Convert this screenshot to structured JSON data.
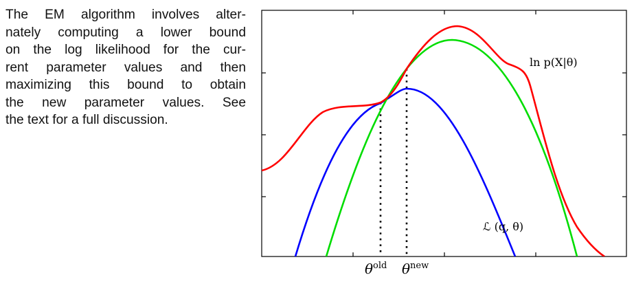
{
  "caption": {
    "lines": [
      "The EM algorithm involves alter-",
      "nately computing a lower bound",
      "on the log likelihood for the cur-",
      "rent parameter values and then",
      "maximizing this bound to obtain",
      "the new parameter values.  See",
      "the text for a full discussion."
    ]
  },
  "diagram": {
    "labels": {
      "log_likelihood": "ln p(X|θ)",
      "lower_bound": "ℒ (q, θ)",
      "theta_old_symbol": "θ",
      "theta_old_superscript": "old",
      "theta_new_symbol": "θ",
      "theta_new_superscript": "new"
    },
    "colors": {
      "log_likelihood": "#ff0000",
      "lower_bound_old": "#0000ff",
      "lower_bound_new": "#00dd00",
      "frame": "#000000",
      "guide_lines": "#000000"
    }
  }
}
